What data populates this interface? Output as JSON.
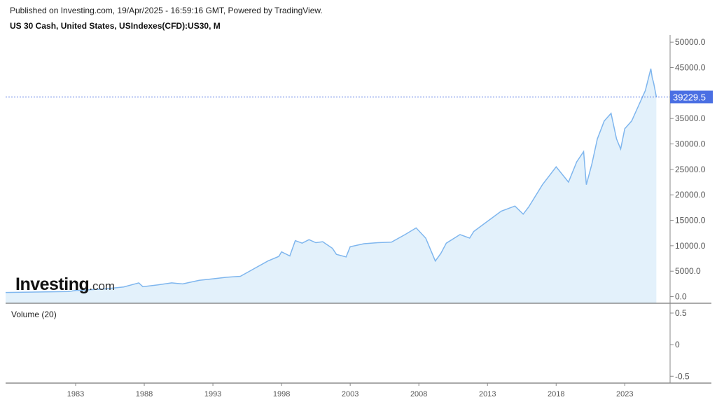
{
  "header": {
    "published": "Published on Investing.com, 19/Apr/2025 - 16:59:16 GMT, Powered by TradingView.",
    "title": "US 30 Cash, United States, USIndexes(CFD):US30, M"
  },
  "logo": {
    "main": "Investing",
    "suffix": ".com"
  },
  "volume_label": "Volume (20)",
  "colors": {
    "line": "#7fb6ee",
    "fill": "#e3f1fb",
    "last_price_bg": "#4a6fe3"
  },
  "chart_data": {
    "type": "area",
    "title": "US 30 Cash, United States, USIndexes(CFD):US30, M",
    "last_price": 39229.5,
    "last_price_label": "39229.5",
    "xlim": [
      1977.9,
      2026.3
    ],
    "ylim": [
      -1300,
      51400
    ],
    "y_ticks": [
      {
        "v": 50000,
        "l": "50000.0"
      },
      {
        "v": 45000,
        "l": "45000.0"
      },
      {
        "v": 35000,
        "l": "35000.0"
      },
      {
        "v": 30000,
        "l": "30000.0"
      },
      {
        "v": 25000,
        "l": "25000.0"
      },
      {
        "v": 20000,
        "l": "20000.0"
      },
      {
        "v": 15000,
        "l": "15000.0"
      },
      {
        "v": 10000,
        "l": "10000.0"
      },
      {
        "v": 5000,
        "l": "5000.0"
      },
      {
        "v": 0,
        "l": "0.0"
      }
    ],
    "volume_ticks": [
      {
        "v": 0.5,
        "l": "0.5"
      },
      {
        "v": 0,
        "l": "0"
      },
      {
        "v": -0.5,
        "l": "-0.5"
      }
    ],
    "x_ticks": [
      {
        "v": 1983,
        "l": "1983"
      },
      {
        "v": 1988,
        "l": "1988"
      },
      {
        "v": 1993,
        "l": "1993"
      },
      {
        "v": 1998,
        "l": "1998"
      },
      {
        "v": 2003,
        "l": "2003"
      },
      {
        "v": 2008,
        "l": "2008"
      },
      {
        "v": 2013,
        "l": "2013"
      },
      {
        "v": 2018,
        "l": "2018"
      },
      {
        "v": 2023,
        "l": "2023"
      }
    ],
    "x": [
      1977.9,
      1980,
      1982.5,
      1983,
      1985,
      1986.5,
      1987.6,
      1987.9,
      1989,
      1990,
      1990.8,
      1992,
      1993,
      1994,
      1995,
      1996,
      1997,
      1997.8,
      1998,
      1998.6,
      1999,
      1999.5,
      2000,
      2000.5,
      2001,
      2001.7,
      2002,
      2002.7,
      2003,
      2004,
      2005,
      2006,
      2007,
      2007.8,
      2008.5,
      2009.2,
      2009.6,
      2010,
      2011,
      2011.7,
      2012,
      2013,
      2014,
      2015,
      2015.6,
      2016,
      2017,
      2018,
      2018.9,
      2019.5,
      2020,
      2020.2,
      2020.6,
      2021,
      2021.5,
      2022,
      2022.4,
      2022.7,
      2023,
      2023.5,
      2024,
      2024.5,
      2024.9,
      2025.0,
      2025.1,
      2025.3
    ],
    "values": [
      820,
      900,
      1000,
      1200,
      1500,
      1900,
      2700,
      1950,
      2300,
      2700,
      2500,
      3200,
      3500,
      3800,
      4000,
      5500,
      7000,
      7900,
      8800,
      8000,
      11000,
      10500,
      11200,
      10600,
      10800,
      9500,
      8300,
      7800,
      9800,
      10400,
      10600,
      10700,
      12200,
      13500,
      11500,
      7000,
      8500,
      10500,
      12200,
      11500,
      12800,
      14800,
      16800,
      17800,
      16200,
      17600,
      22000,
      25500,
      22500,
      26500,
      28500,
      22000,
      26000,
      31000,
      34500,
      36000,
      31000,
      29000,
      33000,
      34500,
      37500,
      40500,
      44800,
      43000,
      42000,
      39229.5
    ]
  }
}
